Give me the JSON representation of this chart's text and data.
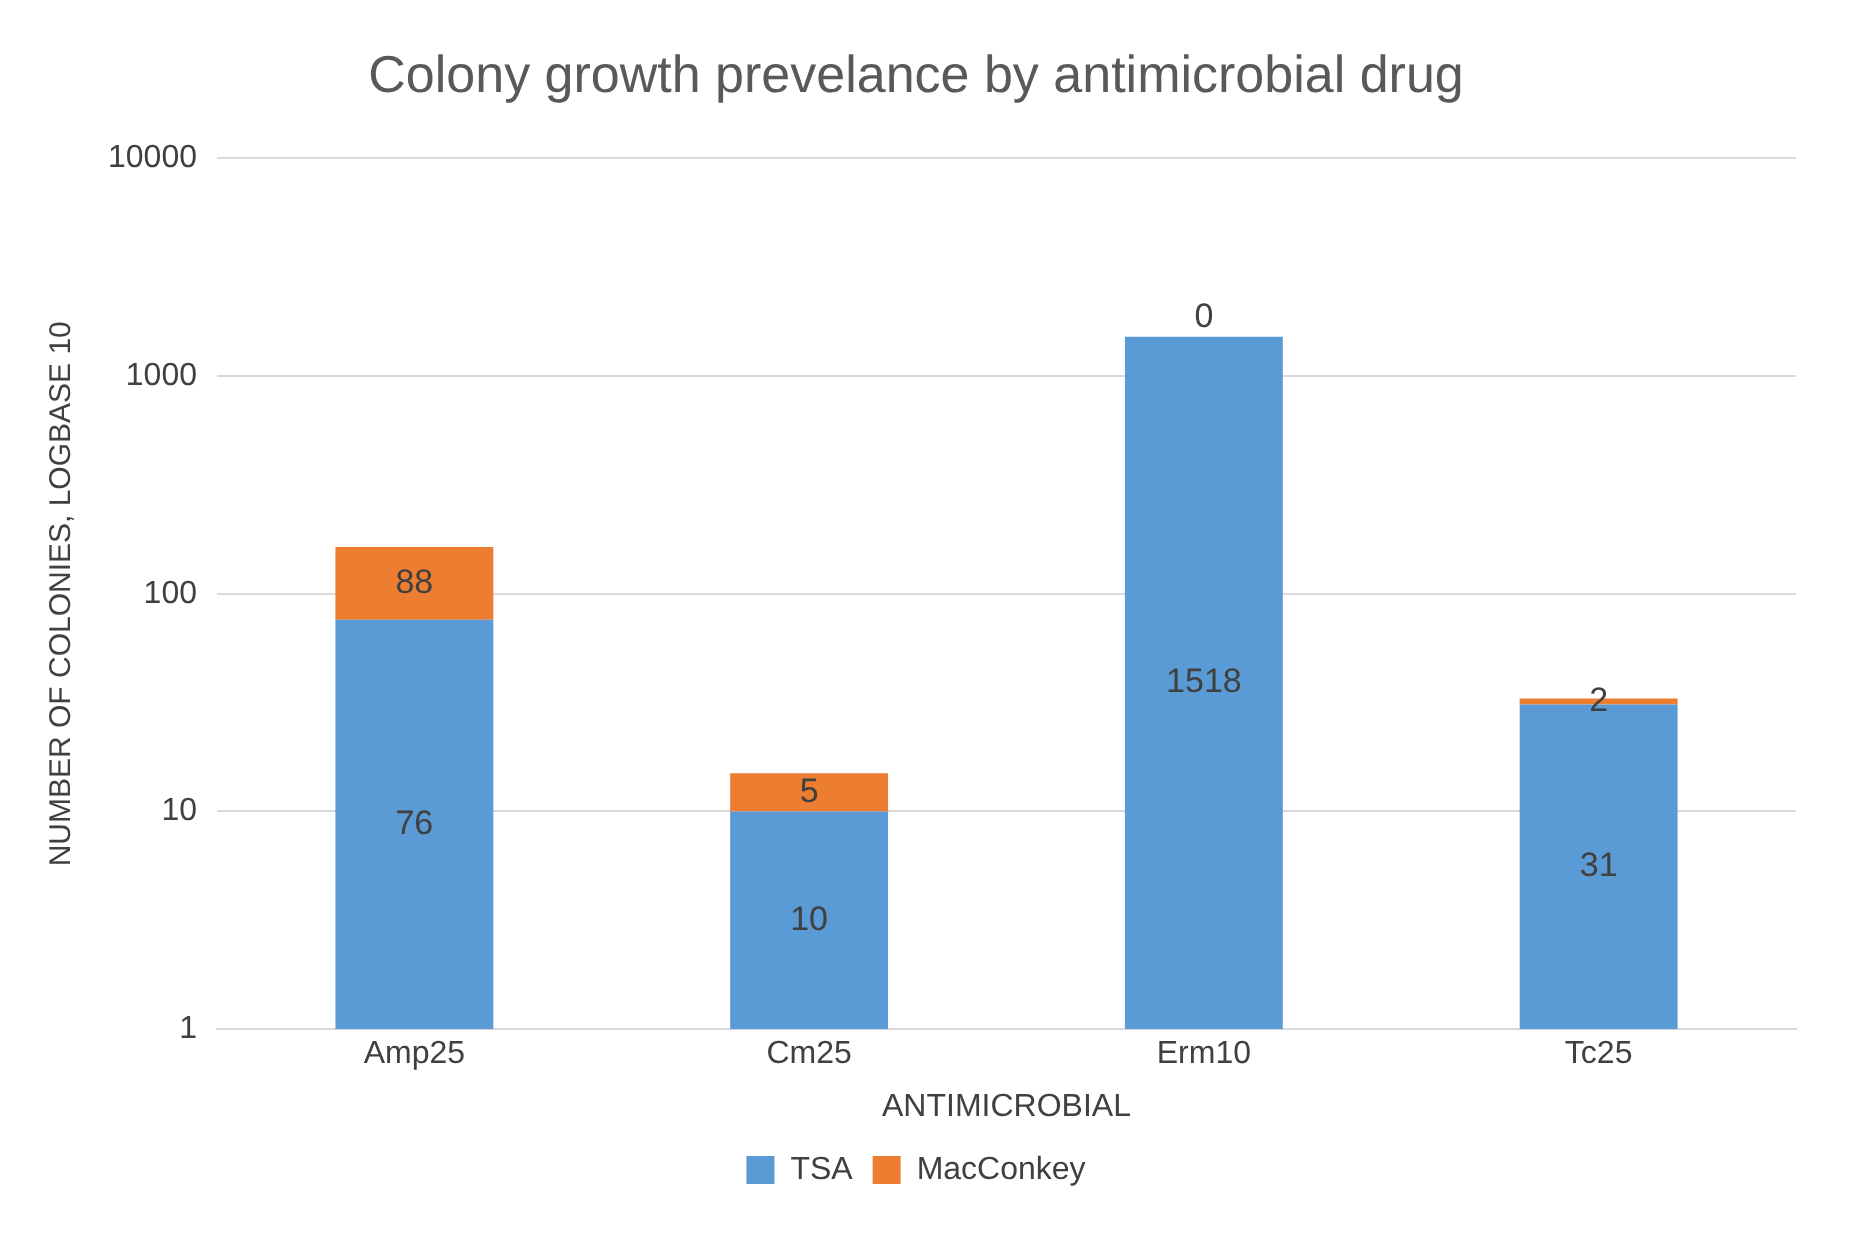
{
  "chart_data": {
    "type": "bar",
    "title": "Colony growth prevelance by antimicrobial drug",
    "xlabel": "ANTIMICROBIAL",
    "ylabel": "NUMBER OF COLONIES, LOGBASE 10",
    "categories": [
      "Amp25",
      "Cm25",
      "Erm10",
      "Tc25"
    ],
    "series": [
      {
        "name": "TSA",
        "color": "#5b9bd5",
        "values": [
          76,
          10,
          1518,
          31
        ]
      },
      {
        "name": "MacConkey",
        "color": "#ed7d31",
        "values": [
          88,
          5,
          null,
          2
        ]
      }
    ],
    "stacked": true,
    "log": "y",
    "ylim": [
      1,
      10000
    ],
    "yticks": [
      1,
      10,
      100,
      1000,
      10000
    ],
    "grid": "y",
    "legend": "bottom",
    "data_labels": true,
    "annotations": [
      {
        "text": "0",
        "x": "Erm10",
        "y": 1518
      }
    ]
  }
}
